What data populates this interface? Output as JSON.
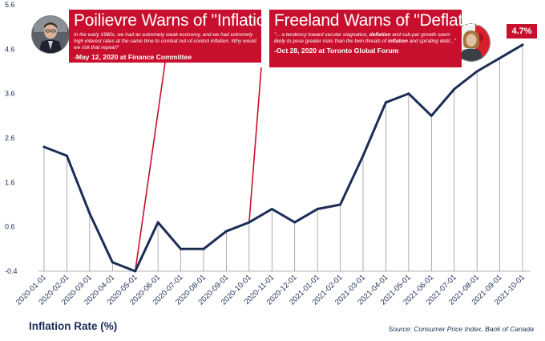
{
  "chart_data": {
    "type": "line",
    "title": "",
    "xlabel": "",
    "ylabel": "Inflation Rate (%)",
    "categories": [
      "2020-01-01",
      "2020-02-01",
      "2020-03-01",
      "2020-04-01",
      "2020-05-01",
      "2020-06-01",
      "2020-07-01",
      "2020-08-01",
      "2020-09-01",
      "2020-10-01",
      "2020-11-01",
      "2020-12-01",
      "2021-01-01",
      "2021-02-01",
      "2021-03-01",
      "2021-04-01",
      "2021-05-01",
      "2021-06-01",
      "2021-07-01",
      "2021-08-01",
      "2021-09-01",
      "2021-10-01"
    ],
    "series": [
      {
        "name": "Inflation Rate (%)",
        "values": [
          2.4,
          2.2,
          0.9,
          -0.2,
          -0.4,
          0.7,
          0.1,
          0.1,
          0.5,
          0.7,
          1.0,
          0.7,
          1.0,
          1.1,
          2.2,
          3.4,
          3.6,
          3.1,
          3.7,
          4.1,
          4.4,
          4.7
        ]
      }
    ],
    "y_ticks": [
      -0.4,
      0.6,
      1.6,
      2.6,
      3.6,
      4.6,
      5.6
    ],
    "ylim": [
      -0.4,
      5.6
    ],
    "grid": false,
    "drop_lines": true,
    "annotations": [
      {
        "id": "poilievre",
        "title": "Poilievre Warns of \"Inflation\"",
        "quote": "In the early 1980s, we had an extremely weak economy, and we had extremely high interest rates at the same time to combat out-of-control inflation. Why would we risk that repeat?",
        "attribution": "-May 12, 2020 at Finance Committee",
        "points_to": "2020-05-01"
      },
      {
        "id": "freeland",
        "title": "Freeland Warns of \"Deflation\"",
        "quote_parts": [
          {
            "text": "\"... a tendency toward secular stagnation, ",
            "bold": false
          },
          {
            "text": "deflation",
            "bold": true
          },
          {
            "text": " and sub-par growth seem likely to pose greater risks than the twin threats of ",
            "bold": false
          },
          {
            "text": "inflation",
            "bold": true
          },
          {
            "text": " and spiraling debt...\"",
            "bold": false
          }
        ],
        "attribution": "-Oct 28, 2020 at Toronto Global Forum",
        "points_to": "2020-10-01"
      }
    ],
    "last_value_label": "4.7%"
  },
  "footer": {
    "title": "Inflation Rate (%)",
    "source": "Source: Consumer Price Index, Bank of Canada"
  },
  "colors": {
    "line": "#1b2d55",
    "callout": "#c8102e",
    "drop_line": "#8a8a8a",
    "text": "#1b2d55"
  }
}
